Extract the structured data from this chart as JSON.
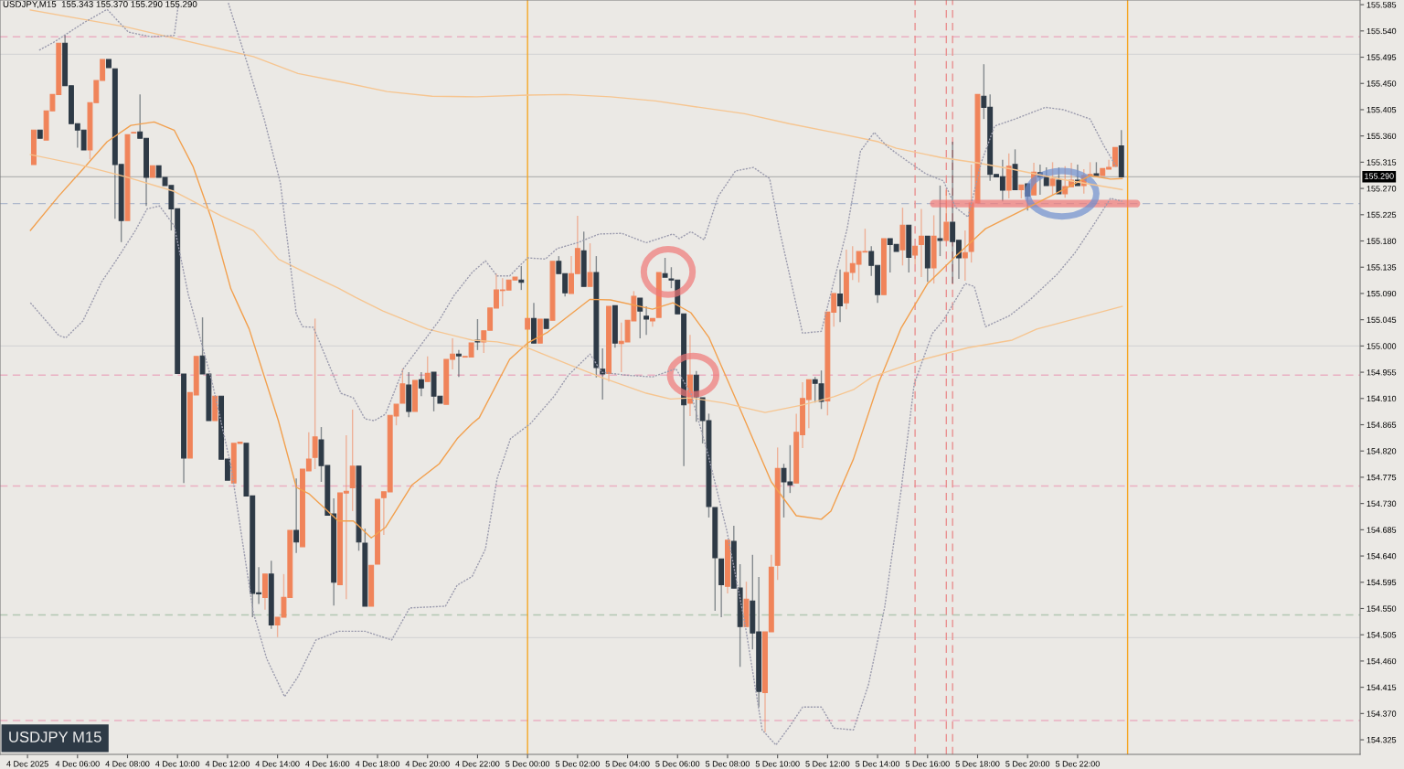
{
  "chart_data": {
    "type": "candlestick",
    "title": "USDJPY,M15  155.343 155.370 155.290 155.290",
    "subtitle": "USDJPY M15",
    "x": [
      "2025-12-04T04:15",
      "2025-12-04T04:30",
      "2025-12-04T04:45",
      "2025-12-04T05:00",
      "2025-12-04T05:15",
      "2025-12-04T05:30",
      "2025-12-04T05:45",
      "2025-12-04T06:00",
      "2025-12-04T06:15",
      "2025-12-04T06:30",
      "2025-12-04T06:45",
      "2025-12-04T07:00",
      "2025-12-04T07:15",
      "2025-12-04T07:30",
      "2025-12-04T07:45",
      "2025-12-04T08:00",
      "2025-12-04T08:15",
      "2025-12-04T08:30",
      "2025-12-04T08:45",
      "2025-12-04T09:00",
      "2025-12-04T09:15",
      "2025-12-04T09:30",
      "2025-12-04T09:45",
      "2025-12-04T10:00",
      "2025-12-04T10:15",
      "2025-12-04T10:30",
      "2025-12-04T10:45",
      "2025-12-04T11:00",
      "2025-12-04T11:15",
      "2025-12-04T11:30",
      "2025-12-04T11:45",
      "2025-12-04T12:00",
      "2025-12-04T12:15",
      "2025-12-04T12:30",
      "2025-12-04T12:45",
      "2025-12-04T13:00",
      "2025-12-04T13:15",
      "2025-12-04T13:30",
      "2025-12-04T13:45",
      "2025-12-04T14:00",
      "2025-12-04T14:15",
      "2025-12-04T14:30",
      "2025-12-04T14:45",
      "2025-12-04T15:00",
      "2025-12-04T15:15",
      "2025-12-04T15:30",
      "2025-12-04T15:45",
      "2025-12-04T16:00",
      "2025-12-04T16:15",
      "2025-12-04T16:30",
      "2025-12-04T16:45",
      "2025-12-04T17:00",
      "2025-12-04T17:15",
      "2025-12-04T17:30",
      "2025-12-04T17:45",
      "2025-12-04T18:00",
      "2025-12-04T18:15",
      "2025-12-04T18:30",
      "2025-12-04T18:45",
      "2025-12-04T19:00",
      "2025-12-04T19:15",
      "2025-12-04T19:30",
      "2025-12-04T19:45",
      "2025-12-04T20:00",
      "2025-12-04T20:15",
      "2025-12-04T20:30",
      "2025-12-04T20:45",
      "2025-12-04T21:00",
      "2025-12-04T21:15",
      "2025-12-04T21:30",
      "2025-12-04T21:45",
      "2025-12-04T22:00",
      "2025-12-04T22:15",
      "2025-12-04T22:30",
      "2025-12-04T22:45",
      "2025-12-04T23:00",
      "2025-12-04T23:15",
      "2025-12-04T23:30",
      "2025-12-04T23:45",
      "2025-12-05T00:00",
      "2025-12-05T00:15",
      "2025-12-05T00:30",
      "2025-12-05T00:45",
      "2025-12-05T01:00",
      "2025-12-05T01:15",
      "2025-12-05T01:30",
      "2025-12-05T01:45",
      "2025-12-05T02:00",
      "2025-12-05T02:15",
      "2025-12-05T02:30",
      "2025-12-05T02:45",
      "2025-12-05T03:00",
      "2025-12-05T03:15",
      "2025-12-05T03:30",
      "2025-12-05T03:45",
      "2025-12-05T04:00",
      "2025-12-05T04:15",
      "2025-12-05T04:30",
      "2025-12-05T04:45",
      "2025-12-05T05:00",
      "2025-12-05T05:15",
      "2025-12-05T05:30",
      "2025-12-05T05:45",
      "2025-12-05T06:00",
      "2025-12-05T06:15",
      "2025-12-05T06:30",
      "2025-12-05T06:45",
      "2025-12-05T07:00",
      "2025-12-05T07:15",
      "2025-12-05T07:30",
      "2025-12-05T07:45",
      "2025-12-05T08:00",
      "2025-12-05T08:15",
      "2025-12-05T08:30",
      "2025-12-05T08:45",
      "2025-12-05T09:00",
      "2025-12-05T09:15",
      "2025-12-05T09:30",
      "2025-12-05T09:45",
      "2025-12-05T10:00",
      "2025-12-05T10:15",
      "2025-12-05T10:30",
      "2025-12-05T10:45",
      "2025-12-05T11:00",
      "2025-12-05T11:15",
      "2025-12-05T11:30",
      "2025-12-05T11:45",
      "2025-12-05T12:00",
      "2025-12-05T12:15",
      "2025-12-05T12:30",
      "2025-12-05T12:45",
      "2025-12-05T13:00",
      "2025-12-05T13:15",
      "2025-12-05T13:30",
      "2025-12-05T13:45",
      "2025-12-05T14:00",
      "2025-12-05T14:15",
      "2025-12-05T14:30",
      "2025-12-05T14:45",
      "2025-12-05T15:00",
      "2025-12-05T15:15",
      "2025-12-05T15:30",
      "2025-12-05T15:45",
      "2025-12-05T16:00",
      "2025-12-05T16:15",
      "2025-12-05T16:30",
      "2025-12-05T16:45",
      "2025-12-05T17:00",
      "2025-12-05T17:15",
      "2025-12-05T17:30",
      "2025-12-05T17:45",
      "2025-12-05T18:00",
      "2025-12-05T18:15",
      "2025-12-05T18:30",
      "2025-12-05T18:45",
      "2025-12-05T19:00",
      "2025-12-05T19:15",
      "2025-12-05T19:30",
      "2025-12-05T19:45",
      "2025-12-05T20:00",
      "2025-12-05T20:15",
      "2025-12-05T20:30",
      "2025-12-05T20:45",
      "2025-12-05T21:00",
      "2025-12-05T21:15",
      "2025-12-05T21:30",
      "2025-12-05T21:45",
      "2025-12-05T22:00",
      "2025-12-05T22:15",
      "2025-12-05T22:30",
      "2025-12-05T22:45",
      "2025-12-05T23:00",
      "2025-12-05T23:15",
      "2025-12-05T23:30",
      "2025-12-05T23:45"
    ],
    "ohlc": [
      [
        155.311,
        155.37,
        155.311,
        155.37
      ],
      [
        155.37,
        155.37,
        155.356,
        155.356
      ],
      [
        155.353,
        155.403,
        155.353,
        155.403
      ],
      [
        155.403,
        155.431,
        155.403,
        155.431
      ],
      [
        155.431,
        155.519,
        155.431,
        155.519
      ],
      [
        155.519,
        155.533,
        155.446,
        155.446
      ],
      [
        155.446,
        155.446,
        155.381,
        155.381
      ],
      [
        155.381,
        155.381,
        155.34,
        155.37
      ],
      [
        155.37,
        155.37,
        155.336,
        155.336
      ],
      [
        155.336,
        155.417,
        155.32,
        155.417
      ],
      [
        155.417,
        155.455,
        155.417,
        155.455
      ],
      [
        155.455,
        155.491,
        155.455,
        155.491
      ],
      [
        155.491,
        155.491,
        155.477,
        155.477
      ],
      [
        155.475,
        155.475,
        155.218,
        155.311
      ],
      [
        155.311,
        155.311,
        155.178,
        155.215
      ],
      [
        155.215,
        155.362,
        155.215,
        155.362
      ],
      [
        155.365,
        155.366,
        155.365,
        155.366
      ],
      [
        155.367,
        155.431,
        155.356,
        155.356
      ],
      [
        155.356,
        155.356,
        155.24,
        155.289
      ],
      [
        155.289,
        155.309,
        155.289,
        155.309
      ],
      [
        155.309,
        155.309,
        155.289,
        155.289
      ],
      [
        155.289,
        155.289,
        155.275,
        155.275
      ],
      [
        155.275,
        155.275,
        155.198,
        155.235
      ],
      [
        155.235,
        155.235,
        154.953,
        154.953
      ],
      [
        154.952,
        154.952,
        154.765,
        154.808
      ],
      [
        154.808,
        154.92,
        154.808,
        154.92
      ],
      [
        154.916,
        154.982,
        154.916,
        154.982
      ],
      [
        154.983,
        155.049,
        154.952,
        154.952
      ],
      [
        154.952,
        154.952,
        154.872,
        154.872
      ],
      [
        154.872,
        154.914,
        154.872,
        154.914
      ],
      [
        154.914,
        154.914,
        154.806,
        154.806
      ],
      [
        154.806,
        154.806,
        154.77,
        154.77
      ],
      [
        154.765,
        154.833,
        154.765,
        154.833
      ],
      [
        154.833,
        154.835,
        154.833,
        154.835
      ],
      [
        154.833,
        154.833,
        154.743,
        154.743
      ],
      [
        154.743,
        154.743,
        154.535,
        154.576
      ],
      [
        154.577,
        154.621,
        154.558,
        154.575
      ],
      [
        154.569,
        154.609,
        154.548,
        154.609
      ],
      [
        154.609,
        154.632,
        154.515,
        154.522
      ],
      [
        154.522,
        154.535,
        154.501,
        154.535
      ],
      [
        154.535,
        154.609,
        154.535,
        154.569
      ],
      [
        154.569,
        154.684,
        154.569,
        154.684
      ],
      [
        154.684,
        154.773,
        154.645,
        154.664
      ],
      [
        154.656,
        154.789,
        154.656,
        154.789
      ],
      [
        154.786,
        154.852,
        154.786,
        154.806
      ],
      [
        154.809,
        155.047,
        154.789,
        154.844
      ],
      [
        154.839,
        154.861,
        154.767,
        154.795
      ],
      [
        154.795,
        154.795,
        154.71,
        154.71
      ],
      [
        154.712,
        154.739,
        154.555,
        154.595
      ],
      [
        154.591,
        154.748,
        154.591,
        154.748
      ],
      [
        154.748,
        154.847,
        154.566,
        154.751
      ],
      [
        154.757,
        154.891,
        154.717,
        154.794
      ],
      [
        154.794,
        154.794,
        154.649,
        154.664
      ],
      [
        154.662,
        154.687,
        154.554,
        154.554
      ],
      [
        154.554,
        154.624,
        154.554,
        154.624
      ],
      [
        154.626,
        154.737,
        154.626,
        154.737
      ],
      [
        154.74,
        154.75,
        154.676,
        154.75
      ],
      [
        154.75,
        154.881,
        154.75,
        154.881
      ],
      [
        154.88,
        154.9,
        154.864,
        154.9
      ],
      [
        154.902,
        154.961,
        154.902,
        154.935
      ],
      [
        154.933,
        154.955,
        154.878,
        154.888
      ],
      [
        154.888,
        154.941,
        154.888,
        154.941
      ],
      [
        154.942,
        154.955,
        154.914,
        154.928
      ],
      [
        154.939,
        154.982,
        154.939,
        154.953
      ],
      [
        154.955,
        154.955,
        154.888,
        154.914
      ],
      [
        154.914,
        154.914,
        154.902,
        154.902
      ],
      [
        154.9,
        154.977,
        154.9,
        154.977
      ],
      [
        154.977,
        155.013,
        154.96,
        154.986
      ],
      [
        154.986,
        154.993,
        154.947,
        154.983
      ],
      [
        154.981,
        154.982,
        154.981,
        154.982
      ],
      [
        154.981,
        155.005,
        154.981,
        155.005
      ],
      [
        155.01,
        155.046,
        154.993,
        155.007
      ],
      [
        155.007,
        155.026,
        154.988,
        155.026
      ],
      [
        155.027,
        155.065,
        155.027,
        155.065
      ],
      [
        155.065,
        155.124,
        155.065,
        155.096
      ],
      [
        155.095,
        155.116,
        155.068,
        155.096
      ],
      [
        155.096,
        155.113,
        155.096,
        155.113
      ],
      [
        155.113,
        155.118,
        155.113,
        155.118
      ],
      [
        155.113,
        155.137,
        155.096,
        155.109
      ],
      [
        155.029,
        155.047,
        155.029,
        155.047
      ],
      [
        155.047,
        155.074,
        155.005,
        155.005
      ],
      [
        155.005,
        155.046,
        155.005,
        155.046
      ],
      [
        155.046,
        155.046,
        155.03,
        155.03
      ],
      [
        155.044,
        155.145,
        155.044,
        155.145
      ],
      [
        155.145,
        155.154,
        155.124,
        155.124
      ],
      [
        155.124,
        155.124,
        155.085,
        155.091
      ],
      [
        155.09,
        155.154,
        155.09,
        155.124
      ],
      [
        155.124,
        155.223,
        155.124,
        155.167
      ],
      [
        155.163,
        155.196,
        155.102,
        155.102
      ],
      [
        155.102,
        155.176,
        155.102,
        155.126
      ],
      [
        155.126,
        155.154,
        154.946,
        154.963
      ],
      [
        154.96,
        154.996,
        154.908,
        154.952
      ],
      [
        154.953,
        155.068,
        154.939,
        155.068
      ],
      [
        155.069,
        155.069,
        154.997,
        155.005
      ],
      [
        155.004,
        155.04,
        154.955,
        155.008
      ],
      [
        155.007,
        155.044,
        155.007,
        155.044
      ],
      [
        155.043,
        155.094,
        155.043,
        155.085
      ],
      [
        155.082,
        155.082,
        155.013,
        155.06
      ],
      [
        155.051,
        155.068,
        155.019,
        155.046
      ],
      [
        155.043,
        155.047,
        155.033,
        155.047
      ],
      [
        155.049,
        155.126,
        155.049,
        155.126
      ],
      [
        155.124,
        155.151,
        155.118,
        155.118
      ],
      [
        155.115,
        155.135,
        155.099,
        155.113
      ],
      [
        155.113,
        155.113,
        155.055,
        155.055
      ],
      [
        155.055,
        155.055,
        154.794,
        154.899
      ],
      [
        154.902,
        155.019,
        154.88,
        154.95
      ],
      [
        154.95,
        154.957,
        154.87,
        154.913
      ],
      [
        154.911,
        154.911,
        154.833,
        154.872
      ],
      [
        154.872,
        154.884,
        154.706,
        154.725
      ],
      [
        154.723,
        154.723,
        154.546,
        154.637
      ],
      [
        154.635,
        154.635,
        154.535,
        154.591
      ],
      [
        154.588,
        154.667,
        154.576,
        154.667
      ],
      [
        154.665,
        154.692,
        154.585,
        154.585
      ],
      [
        154.585,
        154.626,
        154.45,
        154.519
      ],
      [
        154.519,
        154.596,
        154.519,
        154.566
      ],
      [
        154.563,
        154.642,
        154.48,
        154.508
      ],
      [
        154.51,
        154.604,
        154.381,
        154.408
      ],
      [
        154.406,
        154.51,
        154.338,
        154.51
      ],
      [
        154.51,
        154.642,
        154.51,
        154.621
      ],
      [
        154.624,
        154.826,
        154.599,
        154.79
      ],
      [
        154.79,
        154.798,
        154.706,
        154.767
      ],
      [
        154.767,
        154.83,
        154.748,
        154.762
      ],
      [
        154.765,
        154.884,
        154.765,
        154.852
      ],
      [
        154.848,
        154.938,
        154.825,
        154.91
      ],
      [
        154.908,
        154.942,
        154.859,
        154.942
      ],
      [
        154.942,
        154.947,
        154.903,
        154.936
      ],
      [
        154.935,
        154.958,
        154.892,
        154.905
      ],
      [
        154.906,
        155.058,
        154.881,
        155.058
      ],
      [
        155.058,
        155.09,
        155.033,
        155.09
      ],
      [
        155.089,
        155.131,
        155.041,
        155.069
      ],
      [
        155.074,
        155.165,
        155.063,
        155.126
      ],
      [
        155.126,
        155.171,
        155.113,
        155.141
      ],
      [
        155.14,
        155.162,
        155.109,
        155.162
      ],
      [
        155.161,
        155.201,
        155.161,
        155.162
      ],
      [
        155.162,
        155.171,
        155.12,
        155.138
      ],
      [
        155.138,
        155.138,
        155.074,
        155.088
      ],
      [
        155.088,
        155.184,
        155.088,
        155.184
      ],
      [
        155.184,
        155.184,
        155.126,
        155.174
      ],
      [
        155.174,
        155.174,
        155.162,
        155.162
      ],
      [
        155.165,
        155.237,
        155.138,
        155.207
      ],
      [
        155.207,
        155.207,
        155.126,
        155.152
      ],
      [
        155.156,
        155.171,
        155.14,
        155.171
      ],
      [
        155.174,
        155.235,
        155.118,
        155.188
      ],
      [
        155.188,
        155.188,
        155.11,
        155.134
      ],
      [
        155.134,
        155.224,
        155.107,
        155.188
      ],
      [
        155.184,
        155.275,
        155.154,
        155.181
      ],
      [
        155.181,
        155.267,
        155.181,
        155.212
      ],
      [
        155.212,
        155.35,
        155.107,
        155.179
      ],
      [
        155.181,
        155.181,
        155.115,
        155.151
      ],
      [
        155.151,
        155.198,
        155.112,
        155.16
      ],
      [
        155.162,
        155.311,
        155.143,
        155.245
      ],
      [
        155.245,
        155.431,
        155.245,
        155.431
      ],
      [
        155.428,
        155.483,
        155.389,
        155.409
      ],
      [
        155.409,
        155.431,
        155.283,
        155.294
      ],
      [
        155.294,
        155.294,
        155.29,
        155.29
      ],
      [
        155.29,
        155.319,
        155.248,
        155.267
      ],
      [
        155.267,
        155.33,
        155.253,
        155.308
      ],
      [
        155.311,
        155.337,
        155.268,
        155.268
      ],
      [
        155.268,
        155.276,
        155.253,
        155.276
      ],
      [
        155.278,
        155.278,
        155.232,
        155.257
      ],
      [
        155.259,
        155.314,
        155.259,
        155.298
      ],
      [
        155.297,
        155.311,
        155.259,
        155.29
      ],
      [
        155.29,
        155.306,
        155.275,
        155.275
      ],
      [
        155.275,
        155.315,
        155.259,
        155.286
      ],
      [
        155.284,
        155.306,
        155.261,
        155.261
      ],
      [
        155.261,
        155.308,
        155.254,
        155.273
      ],
      [
        155.273,
        155.314,
        155.273,
        155.284
      ],
      [
        155.284,
        155.311,
        155.275,
        155.275
      ],
      [
        155.275,
        155.303,
        155.261,
        155.292
      ],
      [
        155.292,
        155.315,
        155.292,
        155.294
      ],
      [
        155.295,
        155.315,
        155.292,
        155.292
      ],
      [
        155.292,
        155.304,
        155.292,
        155.304
      ],
      [
        155.303,
        155.319,
        155.303,
        155.306
      ],
      [
        155.308,
        155.34,
        155.308,
        155.34
      ],
      [
        155.343,
        155.37,
        155.29,
        155.29
      ]
    ],
    "colors": [
      "#f0845a",
      "#2e3a46",
      "#f0845a",
      "#f0845a",
      "#f0845a",
      "#2e3a46",
      "#2e3a46",
      "#2e3a46",
      "#2e3a46",
      "#f0845a",
      "#f0845a",
      "#f0845a",
      "#2e3a46",
      "#2e3a46",
      "#2e3a46",
      "#f0845a",
      "#f0845a",
      "#2e3a46",
      "#2e3a46",
      "#f0845a",
      "#2e3a46",
      "#2e3a46",
      "#2e3a46",
      "#2e3a46",
      "#2e3a46",
      "#f0845a",
      "#f0845a",
      "#2e3a46",
      "#2e3a46",
      "#f0845a",
      "#2e3a46",
      "#2e3a46",
      "#f0845a",
      "#f0845a",
      "#2e3a46",
      "#2e3a46",
      "#2e3a46",
      "#f0845a",
      "#2e3a46",
      "#f0845a",
      "#f0845a",
      "#f0845a",
      "#2e3a46",
      "#f0845a",
      "#f0845a",
      "#f0845a",
      "#2e3a46",
      "#2e3a46",
      "#2e3a46",
      "#f0845a",
      "#f0845a",
      "#f0845a",
      "#2e3a46",
      "#2e3a46",
      "#f0845a",
      "#f0845a",
      "#f0845a",
      "#f0845a",
      "#f0845a",
      "#f0845a",
      "#2e3a46",
      "#f0845a",
      "#2e3a46",
      "#f0845a",
      "#2e3a46",
      "#2e3a46",
      "#f0845a",
      "#f0845a",
      "#2e3a46",
      "#f0845a",
      "#f0845a",
      "#2e3a46",
      "#f0845a",
      "#f0845a",
      "#f0845a",
      "#f0845a",
      "#f0845a",
      "#f0845a",
      "#2e3a46",
      "#f0845a",
      "#2e3a46",
      "#f0845a",
      "#2e3a46",
      "#f0845a",
      "#2e3a46",
      "#2e3a46",
      "#f0845a",
      "#f0845a",
      "#2e3a46",
      "#f0845a",
      "#2e3a46",
      "#2e3a46",
      "#f0845a",
      "#2e3a46",
      "#f0845a",
      "#f0845a",
      "#f0845a",
      "#2e3a46",
      "#2e3a46",
      "#f0845a",
      "#f0845a",
      "#2e3a46",
      "#2e3a46",
      "#2e3a46",
      "#2e3a46",
      "#f0845a",
      "#2e3a46",
      "#2e3a46",
      "#2e3a46",
      "#2e3a46",
      "#2e3a46",
      "#f0845a",
      "#2e3a46",
      "#2e3a46",
      "#f0845a",
      "#2e3a46",
      "#2e3a46",
      "#f0845a",
      "#f0845a",
      "#f0845a",
      "#2e3a46",
      "#2e3a46",
      "#f0845a",
      "#f0845a",
      "#f0845a",
      "#2e3a46",
      "#2e3a46",
      "#f0845a",
      "#f0845a",
      "#2e3a46",
      "#f0845a",
      "#f0845a",
      "#f0845a",
      "#f0845a",
      "#2e3a46",
      "#2e3a46",
      "#f0845a",
      "#2e3a46",
      "#2e3a46",
      "#f0845a",
      "#2e3a46",
      "#f0845a",
      "#f0845a",
      "#2e3a46",
      "#f0845a",
      "#2e3a46",
      "#f0845a",
      "#2e3a46",
      "#2e3a46",
      "#f0845a",
      "#f0845a",
      "#f0845a",
      "#2e3a46",
      "#2e3a46",
      "#2e3a46",
      "#2e3a46",
      "#f0845a",
      "#2e3a46",
      "#f0845a",
      "#2e3a46",
      "#f0845a",
      "#2e3a46",
      "#2e3a46",
      "#f0845a",
      "#2e3a46",
      "#f0845a",
      "#f0845a",
      "#2e3a46",
      "#f0845a",
      "#f0845a",
      "#2e3a46",
      "#f0845a",
      "#f0845a",
      "#f0845a",
      "#2e3a46"
    ],
    "series": [
      {
        "type": "line",
        "color": "#f2a04e",
        "line_style": "solid",
        "x": [
          "2025-12-04T04:07",
          "2025-12-04T05:15",
          "2025-12-04T06:13",
          "2025-12-04T07:11",
          "2025-12-04T08:08",
          "2025-12-04T09:04",
          "2025-12-04T09:52",
          "2025-12-04T10:37",
          "2025-12-04T11:23",
          "2025-12-04T12:08",
          "2025-12-04T12:52",
          "2025-12-04T14:02",
          "2025-12-04T14:45",
          "2025-12-04T15:15",
          "2025-12-04T16:26",
          "2025-12-04T17:02",
          "2025-12-04T17:45",
          "2025-12-04T18:19",
          "2025-12-04T19:23",
          "2025-12-04T20:28",
          "2025-12-04T21:11",
          "2025-12-04T21:47",
          "2025-12-04T22:04",
          "2025-12-04T23:17",
          "2025-12-05T00:00",
          "2025-12-05T00:49",
          "2025-12-05T02:30",
          "2025-12-05T03:19",
          "2025-12-05T05:00",
          "2025-12-05T05:49",
          "2025-12-05T06:32",
          "2025-12-05T07:15",
          "2025-12-05T08:30",
          "2025-12-05T09:45",
          "2025-12-05T10:45",
          "2025-12-05T11:45",
          "2025-12-05T12:08",
          "2025-12-05T13:02",
          "2025-12-05T14:02",
          "2025-12-05T14:56",
          "2025-12-05T16:00",
          "2025-12-05T17:08",
          "2025-12-05T18:19",
          "2025-12-05T20:00",
          "2025-12-05T21:26",
          "2025-12-05T22:30",
          "2025-12-05T23:19",
          "2025-12-05T23:47"
        ],
        "values": [
          155.198,
          155.257,
          155.303,
          155.35,
          155.378,
          155.384,
          155.37,
          155.308,
          155.215,
          155.098,
          155.029,
          154.872,
          154.758,
          154.747,
          154.7,
          154.7,
          154.671,
          154.689,
          154.762,
          154.798,
          154.841,
          154.867,
          154.877,
          154.977,
          155.005,
          155.024,
          155.08,
          155.079,
          155.063,
          155.074,
          155.057,
          155.015,
          154.892,
          154.767,
          154.709,
          154.703,
          154.717,
          154.806,
          154.936,
          155.03,
          155.107,
          155.154,
          155.201,
          155.237,
          155.268,
          155.292,
          155.286,
          155.287
        ]
      },
      {
        "type": "line",
        "color": "#f6c590",
        "line_style": "solid",
        "x": [
          "2025-12-04T04:07",
          "2025-12-04T07:56",
          "2025-12-04T13:02",
          "2025-12-04T14:49",
          "2025-12-04T16:37",
          "2025-12-04T18:23",
          "2025-12-04T20:11",
          "2025-12-04T21:58",
          "2025-12-05T00:00",
          "2025-12-05T01:32",
          "2025-12-05T03:19",
          "2025-12-05T05:07",
          "2025-12-05T06:53",
          "2025-12-05T08:41",
          "2025-12-05T10:28",
          "2025-12-05T12:15",
          "2025-12-05T14:02",
          "2025-12-05T14:45",
          "2025-12-05T16:32",
          "2025-12-05T17:58",
          "2025-12-05T19:23",
          "2025-12-05T21:11",
          "2025-12-05T23:47"
        ],
        "values": [
          155.576,
          155.547,
          155.496,
          155.467,
          155.452,
          155.436,
          155.428,
          155.427,
          155.43,
          155.431,
          155.427,
          155.42,
          155.409,
          155.398,
          155.381,
          155.366,
          155.35,
          155.339,
          155.323,
          155.314,
          155.303,
          155.287,
          155.268
        ]
      },
      {
        "type": "line",
        "color": "#f6c590",
        "line_style": "solid",
        "x": [
          "2025-12-04T04:07",
          "2025-12-04T06:02",
          "2025-12-04T07:56",
          "2025-12-04T09:52",
          "2025-12-04T11:45",
          "2025-12-04T13:02",
          "2025-12-04T14:02",
          "2025-12-04T15:15",
          "2025-12-04T16:26",
          "2025-12-04T17:08",
          "2025-12-04T18:13",
          "2025-12-04T20:00",
          "2025-12-04T21:47",
          "2025-12-04T22:47",
          "2025-12-05T00:00",
          "2025-12-05T01:47",
          "2025-12-05T02:58",
          "2025-12-05T04:45",
          "2025-12-05T05:43",
          "2025-12-05T06:32",
          "2025-12-05T07:53",
          "2025-12-05T09:30",
          "2025-12-05T11:00",
          "2025-12-05T12:15",
          "2025-12-05T13:02",
          "2025-12-05T13:47",
          "2025-12-05T14:56",
          "2025-12-05T15:49",
          "2025-12-05T17:37",
          "2025-12-05T19:23",
          "2025-12-05T20:22",
          "2025-12-05T23:47"
        ],
        "values": [
          155.328,
          155.311,
          155.29,
          155.265,
          155.223,
          155.198,
          155.149,
          155.123,
          155.099,
          155.083,
          155.06,
          155.029,
          155.01,
          155.007,
          154.997,
          154.966,
          154.946,
          154.919,
          154.909,
          154.911,
          154.902,
          154.886,
          154.899,
          154.913,
          154.925,
          154.947,
          154.964,
          154.977,
          154.997,
          155.01,
          155.029,
          155.068
        ]
      },
      {
        "type": "line",
        "color": "#9c9cae",
        "line_style": "dotted",
        "x": [
          "2025-12-04T04:28",
          "2025-12-04T05:04",
          "2025-12-04T06:15",
          "2025-12-04T07:11",
          "2025-12-04T08:02",
          "2025-12-04T08:56",
          "2025-12-04T09:52",
          "2025-12-04T10:02",
          "2025-12-04T11:02",
          "2025-12-04T12:02",
          "2025-12-04T12:41",
          "2025-12-04T13:28",
          "2025-12-04T14:07",
          "2025-12-04T14:45",
          "2025-12-04T15:00",
          "2025-12-04T15:26",
          "2025-12-04T16:11",
          "2025-12-04T16:32",
          "2025-12-04T17:02",
          "2025-12-04T17:30",
          "2025-12-04T17:52",
          "2025-12-04T18:19",
          "2025-12-04T19:02",
          "2025-12-04T20:28",
          "2025-12-04T21:04",
          "2025-12-04T21:47",
          "2025-12-04T22:19",
          "2025-12-04T22:47",
          "2025-12-04T23:17",
          "2025-12-05T00:00",
          "2025-12-05T00:43",
          "2025-12-05T01:11",
          "2025-12-05T02:00",
          "2025-12-05T02:52",
          "2025-12-05T03:47",
          "2025-12-05T04:45",
          "2025-12-05T05:49",
          "2025-12-05T06:04",
          "2025-12-05T06:32",
          "2025-12-05T07:04",
          "2025-12-05T07:37",
          "2025-12-05T08:19",
          "2025-12-05T09:02",
          "2025-12-05T09:41",
          "2025-12-05T10:04",
          "2025-12-05T11:00",
          "2025-12-05T11:45",
          "2025-12-05T12:47",
          "2025-12-05T13:19",
          "2025-12-05T13:52",
          "2025-12-05T14:23",
          "2025-12-05T15:07",
          "2025-12-05T15:56",
          "2025-12-05T16:38",
          "2025-12-05T17:08",
          "2025-12-05T17:37",
          "2025-12-05T18:09",
          "2025-12-05T18:41",
          "2025-12-05T19:30",
          "2025-12-05T20:43",
          "2025-12-05T21:26",
          "2025-12-05T22:30",
          "2025-12-05T23:04",
          "2025-12-05T23:34"
        ],
        "values": [
          155.507,
          155.521,
          155.554,
          155.577,
          155.538,
          155.53,
          155.532,
          155.585,
          null,
          155.588,
          155.499,
          155.389,
          155.279,
          155.055,
          155.033,
          155.032,
          154.955,
          154.919,
          154.911,
          154.875,
          154.872,
          154.883,
          154.961,
          155.044,
          155.087,
          155.126,
          155.146,
          155.12,
          155.12,
          155.151,
          155.149,
          155.167,
          155.177,
          155.192,
          155.193,
          155.177,
          155.192,
          155.184,
          155.196,
          155.182,
          155.256,
          155.3,
          155.306,
          155.287,
          155.201,
          155.022,
          155.025,
          155.201,
          155.334,
          155.366,
          155.342,
          155.319,
          155.295,
          155.283,
          155.237,
          155.221,
          155.315,
          155.377,
          155.389,
          155.409,
          155.405,
          155.389,
          155.342,
          155.306
        ]
      },
      {
        "type": "line",
        "color": "#9c9cae",
        "line_style": "dotted",
        "x": [
          "2025-12-04T04:07",
          "2025-12-04T05:15",
          "2025-12-04T05:32",
          "2025-12-04T06:13",
          "2025-12-04T06:58",
          "2025-12-04T07:34",
          "2025-12-04T08:19",
          "2025-12-04T08:47",
          "2025-12-04T09:17",
          "2025-12-04T09:52",
          "2025-12-04T10:26",
          "2025-12-04T11:23",
          "2025-12-04T12:08",
          "2025-12-04T13:02",
          "2025-12-04T13:34",
          "2025-12-04T14:17",
          "2025-12-04T14:49",
          "2025-12-04T15:32",
          "2025-12-04T16:26",
          "2025-12-04T17:30",
          "2025-12-04T18:34",
          "2025-12-04T19:17",
          "2025-12-04T20:43",
          "2025-12-04T21:11",
          "2025-12-04T21:47",
          "2025-12-04T22:19",
          "2025-12-04T22:47",
          "2025-12-04T23:19",
          "2025-12-05T00:07",
          "2025-12-05T01:04",
          "2025-12-05T01:38",
          "2025-12-05T02:30",
          "2025-12-05T02:58",
          "2025-12-05T03:56",
          "2025-12-05T05:00",
          "2025-12-05T05:56",
          "2025-12-05T06:32",
          "2025-12-05T07:15",
          "2025-12-05T07:58",
          "2025-12-05T08:41",
          "2025-12-05T09:23",
          "2025-12-05T09:56",
          "2025-12-05T10:30",
          "2025-12-05T11:00",
          "2025-12-05T11:45",
          "2025-12-05T12:15",
          "2025-12-05T13:02",
          "2025-12-05T13:38",
          "2025-12-05T14:17",
          "2025-12-05T14:56",
          "2025-12-05T15:28",
          "2025-12-05T16:11",
          "2025-12-05T16:38",
          "2025-12-05T17:08",
          "2025-12-05T17:30",
          "2025-12-05T17:52",
          "2025-12-05T18:19",
          "2025-12-05T19:17",
          "2025-12-05T20:07",
          "2025-12-05T21:11",
          "2025-12-05T21:53",
          "2025-12-05T22:37",
          "2025-12-05T23:19",
          "2025-12-05T23:47"
        ],
        "values": [
          155.074,
          155.018,
          155.014,
          155.043,
          155.11,
          155.148,
          155.198,
          155.235,
          155.24,
          155.206,
          155.088,
          154.938,
          154.795,
          154.543,
          154.464,
          154.399,
          154.433,
          154.496,
          154.511,
          154.511,
          154.496,
          154.551,
          154.554,
          154.59,
          154.605,
          154.652,
          154.773,
          154.841,
          154.867,
          154.914,
          154.95,
          154.986,
          154.955,
          154.95,
          154.947,
          154.961,
          154.919,
          154.809,
          154.684,
          154.527,
          154.342,
          154.316,
          154.349,
          154.381,
          154.381,
          154.345,
          154.342,
          154.419,
          154.552,
          154.75,
          154.935,
          155.021,
          155.044,
          155.08,
          155.107,
          155.102,
          155.033,
          155.052,
          155.08,
          155.123,
          155.159,
          155.206,
          155.253,
          155.248
        ]
      }
    ],
    "ref_lines": [
      {
        "axis": "y",
        "value": 155.53,
        "color": "#eab0c2",
        "line_style": "dashed"
      },
      {
        "axis": "y",
        "value": 155.5,
        "color": "#d6d6d6",
        "line_style": "solid"
      },
      {
        "axis": "y",
        "value": 155.29,
        "color": "#b4b4b4",
        "line_style": "solid",
        "label": "155.290"
      },
      {
        "axis": "y",
        "value": 155.244,
        "color": "#aeb8cc",
        "line_style": "dashed"
      },
      {
        "axis": "y",
        "value": 155.0,
        "color": "#d6d6d6",
        "line_style": "solid"
      },
      {
        "axis": "y",
        "value": 154.95,
        "color": "#eab0c2",
        "line_style": "dashed"
      },
      {
        "axis": "y",
        "value": 154.76,
        "color": "#eab0c2",
        "line_style": "dashed"
      },
      {
        "axis": "y",
        "value": 154.539,
        "color": "#b2c8b2",
        "line_style": "dashed"
      },
      {
        "axis": "y",
        "value": 154.5,
        "color": "#d6d6d6",
        "line_style": "solid"
      },
      {
        "axis": "y",
        "value": 154.358,
        "color": "#eab0c2",
        "line_style": "dashed"
      },
      {
        "axis": "x",
        "value": "2025-12-05T00:00",
        "color": "#f5a623",
        "line_style": "solid"
      },
      {
        "axis": "x",
        "value": "2025-12-06T00:00",
        "color": "#f5a623",
        "line_style": "solid"
      },
      {
        "axis": "x",
        "value": "2025-12-05T15:30",
        "color": "#e99090",
        "line_style": "dashed"
      },
      {
        "axis": "x",
        "value": "2025-12-05T16:45",
        "color": "#e99090",
        "line_style": "dashed"
      },
      {
        "axis": "x",
        "value": "2025-12-05T17:00",
        "color": "#e99090",
        "line_style": "dashed"
      }
    ],
    "xlim": [
      "2025-12-04T02:54",
      "2025-12-06T09:18"
    ],
    "ylim": [
      154.3,
      155.593
    ],
    "xticks": [
      {
        "value": "2025-12-04T04:00",
        "label": "4 Dec 2025"
      },
      {
        "value": "2025-12-04T06:00",
        "label": "4 Dec 06:00"
      },
      {
        "value": "2025-12-04T08:00",
        "label": "4 Dec 08:00"
      },
      {
        "value": "2025-12-04T10:00",
        "label": "4 Dec 10:00"
      },
      {
        "value": "2025-12-04T12:00",
        "label": "4 Dec 12:00"
      },
      {
        "value": "2025-12-04T14:00",
        "label": "4 Dec 14:00"
      },
      {
        "value": "2025-12-04T16:00",
        "label": "4 Dec 16:00"
      },
      {
        "value": "2025-12-04T18:00",
        "label": "4 Dec 18:00"
      },
      {
        "value": "2025-12-04T20:00",
        "label": "4 Dec 20:00"
      },
      {
        "value": "2025-12-04T22:00",
        "label": "4 Dec 22:00"
      },
      {
        "value": "2025-12-05T00:00",
        "label": "5 Dec 00:00"
      },
      {
        "value": "2025-12-05T02:00",
        "label": "5 Dec 02:00"
      },
      {
        "value": "2025-12-05T04:00",
        "label": "5 Dec 04:00"
      },
      {
        "value": "2025-12-05T06:00",
        "label": "5 Dec 06:00"
      },
      {
        "value": "2025-12-05T08:00",
        "label": "5 Dec 08:00"
      },
      {
        "value": "2025-12-05T10:00",
        "label": "5 Dec 10:00"
      },
      {
        "value": "2025-12-05T12:00",
        "label": "5 Dec 12:00"
      },
      {
        "value": "2025-12-05T14:00",
        "label": "5 Dec 14:00"
      },
      {
        "value": "2025-12-05T16:00",
        "label": "5 Dec 16:00"
      },
      {
        "value": "2025-12-05T18:00",
        "label": "5 Dec 18:00"
      },
      {
        "value": "2025-12-05T20:00",
        "label": "5 Dec 20:00"
      },
      {
        "value": "2025-12-05T22:00",
        "label": "5 Dec 22:00"
      }
    ],
    "yticks": [
      155.585,
      {
        "value": 155.54,
        "label": "155.540"
      },
      155.495,
      {
        "value": 155.45,
        "label": "155.450"
      },
      155.405,
      {
        "value": 155.36,
        "label": "155.360"
      },
      155.315,
      {
        "value": 155.27,
        "label": "155.270"
      },
      155.225,
      {
        "value": 155.18,
        "label": "155.180"
      },
      155.135,
      {
        "value": 155.09,
        "label": "155.090"
      },
      155.045,
      {
        "value": 155.0,
        "label": "155.000"
      },
      154.955,
      {
        "value": 154.91,
        "label": "154.910"
      },
      154.865,
      {
        "value": 154.82,
        "label": "154.820"
      },
      154.775,
      {
        "value": 154.73,
        "label": "154.730"
      },
      154.685,
      {
        "value": 154.64,
        "label": "154.640"
      },
      154.595,
      {
        "value": 154.55,
        "label": "154.550"
      },
      154.505,
      {
        "value": 154.46,
        "label": "154.460"
      },
      154.415,
      {
        "value": 154.37,
        "label": "154.370"
      },
      154.325
    ]
  }
}
